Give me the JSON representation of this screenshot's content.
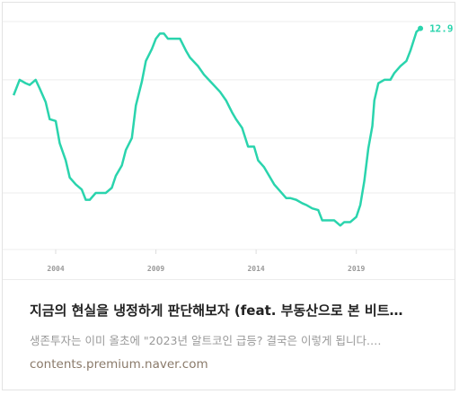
{
  "chart_data": {
    "type": "line",
    "x": [
      2001.9,
      2002.2,
      2002.5,
      2002.7,
      2003.0,
      2003.2,
      2003.5,
      2003.7,
      2004.0,
      2004.2,
      2004.5,
      2004.7,
      2005.0,
      2005.3,
      2005.5,
      2005.7,
      2006.0,
      2006.2,
      2006.5,
      2006.8,
      2007.0,
      2007.3,
      2007.5,
      2007.8,
      2008.0,
      2008.3,
      2008.5,
      2008.8,
      2009.0,
      2009.2,
      2009.4,
      2009.6,
      2010.0,
      2010.2,
      2010.5,
      2010.7,
      2011.1,
      2011.4,
      2011.8,
      2012.2,
      2012.5,
      2012.8,
      2013.0,
      2013.3,
      2013.6,
      2013.9,
      2014.1,
      2014.4,
      2014.7,
      2014.9,
      2015.2,
      2015.5,
      2015.7,
      2016.0,
      2016.3,
      2016.5,
      2016.8,
      2017.1,
      2017.3,
      2017.6,
      2017.9,
      2018.2,
      2018.4,
      2018.7,
      2019.0,
      2019.2,
      2019.4,
      2019.6,
      2019.8,
      2019.9,
      2020.1,
      2020.4,
      2020.7,
      2020.9,
      2021.2,
      2021.5,
      2021.7,
      2022.0,
      2022.2
    ],
    "values": [
      9.0,
      9.9,
      9.7,
      9.6,
      9.9,
      9.4,
      8.6,
      7.6,
      7.5,
      6.2,
      5.2,
      4.2,
      3.8,
      3.5,
      2.9,
      2.9,
      3.3,
      3.3,
      3.3,
      3.6,
      4.3,
      4.9,
      5.8,
      6.5,
      8.4,
      9.8,
      11.0,
      11.7,
      12.3,
      12.6,
      12.6,
      12.3,
      12.3,
      12.3,
      11.6,
      11.2,
      10.7,
      10.2,
      9.7,
      9.2,
      8.7,
      8.0,
      7.6,
      7.1,
      6.0,
      6.0,
      5.2,
      4.8,
      4.2,
      3.8,
      3.4,
      3.0,
      3.0,
      2.9,
      2.7,
      2.6,
      2.4,
      2.3,
      1.7,
      1.7,
      1.7,
      1.4,
      1.6,
      1.6,
      1.9,
      2.6,
      4.0,
      5.9,
      7.2,
      8.7,
      9.7,
      9.9,
      9.9,
      10.3,
      10.7,
      11.0,
      11.6,
      12.7,
      12.9
    ],
    "color": "#2ad4ad",
    "xlim": [
      2001.4,
      2023.9
    ],
    "xticks": [
      2004,
      2009,
      2014,
      2019
    ],
    "ylim": [
      0,
      13.3
    ],
    "yticks": [
      0,
      3.3,
      6.5,
      9.9,
      13.3
    ],
    "grid": true
  },
  "card": {
    "title": "지금의 현실을 냉정하게 판단해보자 (feat. 부동산으로 본 비트…",
    "description": "생존투자는 이미 올초에 \"2023년 알트코인 급등? 결국은 이렇게 됩니다.…",
    "url": "contents.premium.naver.com"
  }
}
